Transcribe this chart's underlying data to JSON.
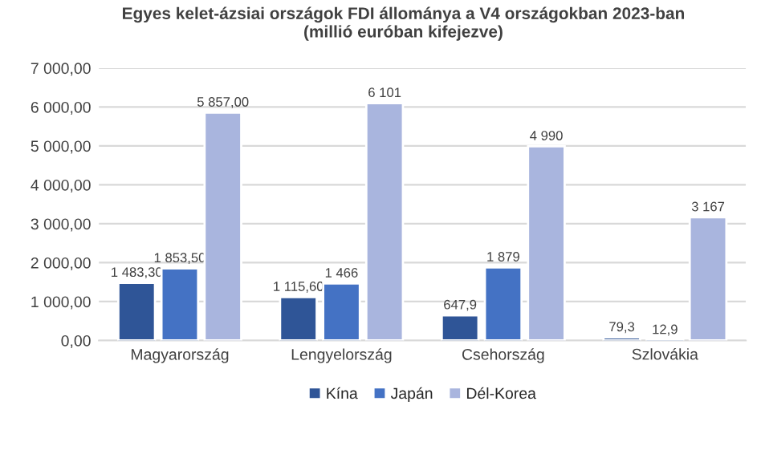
{
  "chart_data": {
    "type": "bar",
    "title": "Egyes kelet-ázsiai országok FDI állománya a V4 országokban 2023-ban\n(millió euróban kifejezve)",
    "categories": [
      "Magyarország",
      "Lengyelország",
      "Csehország",
      "Szlovákia"
    ],
    "series": [
      {
        "name": "Kína",
        "color": "#2f5597",
        "values": [
          1483.3,
          1115.6,
          647.9,
          79.3
        ],
        "value_labels": [
          "1 483,30",
          "1 115,60",
          "647,9",
          "79,3"
        ]
      },
      {
        "name": "Japán",
        "color": "#4472c4",
        "values": [
          1853.5,
          1466,
          1879,
          12.9
        ],
        "value_labels": [
          "1 853,50",
          "1 466",
          "1 879",
          "12,9"
        ]
      },
      {
        "name": "Dél-Korea",
        "color": "#a9b5de",
        "values": [
          5857,
          6101,
          4990,
          3167
        ],
        "value_labels": [
          "5 857,00",
          "6 101",
          "4 990",
          "3 167"
        ]
      }
    ],
    "ylim": [
      0,
      7000
    ],
    "yticks": [
      {
        "value": 0,
        "label": "0,00"
      },
      {
        "value": 1000,
        "label": "1 000,00"
      },
      {
        "value": 2000,
        "label": "2 000,00"
      },
      {
        "value": 3000,
        "label": "3 000,00"
      },
      {
        "value": 4000,
        "label": "4 000,00"
      },
      {
        "value": 5000,
        "label": "5 000,00"
      },
      {
        "value": 6000,
        "label": "6 000,00"
      },
      {
        "value": 7000,
        "label": "7 000,00"
      }
    ],
    "grid": "y",
    "legend": "bottom"
  }
}
